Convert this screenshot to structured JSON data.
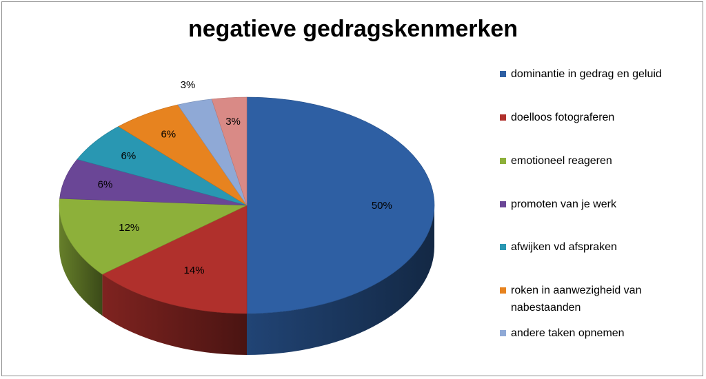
{
  "chart_data": {
    "type": "pie",
    "title": "negatieve gedragskenmerken",
    "legend_position": "right",
    "series": [
      {
        "name": "dominantie in gedrag en geluid",
        "value": 50,
        "label": "50%",
        "color": "#2E5FA3"
      },
      {
        "name": "doelloos fotograferen",
        "value": 14,
        "label": "14%",
        "color": "#B0302C"
      },
      {
        "name": "emotioneel reageren",
        "value": 12,
        "label": "12%",
        "color": "#8DB03A"
      },
      {
        "name": "promoten van je werk",
        "value": 6,
        "label": "6%",
        "color": "#6A4696"
      },
      {
        "name": "afwijken vd afspraken",
        "value": 6,
        "label": "6%",
        "color": "#2997B2"
      },
      {
        "name": "roken in aanwezigheid van nabestaanden",
        "value": 6,
        "label": "6%",
        "color": "#E7831F"
      },
      {
        "name": "andere taken opnemen",
        "value": 3,
        "label": "3%",
        "color": "#8FA9D6"
      },
      {
        "name": "",
        "value": 3,
        "label": "3%",
        "color": "#D98A86"
      }
    ]
  }
}
